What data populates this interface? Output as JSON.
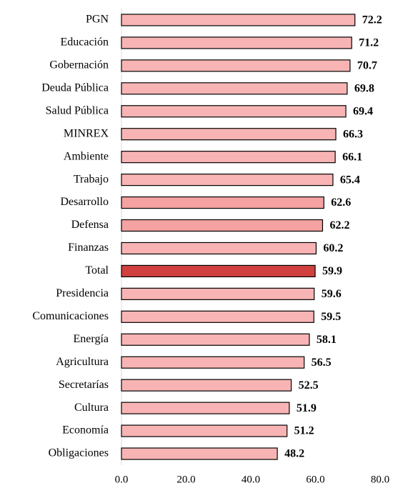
{
  "chart_data": {
    "type": "bar",
    "orientation": "horizontal",
    "categories": [
      "PGN",
      "Educación",
      "Gobernación",
      "Deuda Pública",
      "Salud Pública",
      "MINREX",
      "Ambiente",
      "Trabajo",
      "Desarrollo",
      "Defensa",
      "Finanzas",
      "Total",
      "Presidencia",
      "Comunicaciones",
      "Energía",
      "Agricultura",
      "Secretarías",
      "Cultura",
      "Economía",
      "Obligaciones"
    ],
    "values": [
      72.2,
      71.2,
      70.7,
      69.8,
      69.4,
      66.3,
      66.1,
      65.4,
      62.6,
      62.2,
      60.2,
      59.9,
      59.6,
      59.5,
      58.1,
      56.5,
      52.5,
      51.9,
      51.2,
      48.2
    ],
    "colors": [
      "#f8b4b4",
      "#f8b4b4",
      "#f8b4b4",
      "#f8b4b4",
      "#f8b4b4",
      "#f8b4b4",
      "#f8b4b4",
      "#f8b4b4",
      "#f4a2a2",
      "#f4a2a2",
      "#f8b4b4",
      "#d0403f",
      "#f8b4b4",
      "#f8b4b4",
      "#f8b4b4",
      "#f8b4b4",
      "#f8b4b4",
      "#f8b4b4",
      "#f8b4b4",
      "#f8b4b4"
    ],
    "xlim": [
      0,
      80
    ],
    "xticks": [
      {
        "value": 0,
        "label": "0.0"
      },
      {
        "value": 20,
        "label": "20.0"
      },
      {
        "value": 40,
        "label": "40.0"
      },
      {
        "value": 60,
        "label": "60.0"
      },
      {
        "value": 80,
        "label": "80.0"
      }
    ]
  }
}
